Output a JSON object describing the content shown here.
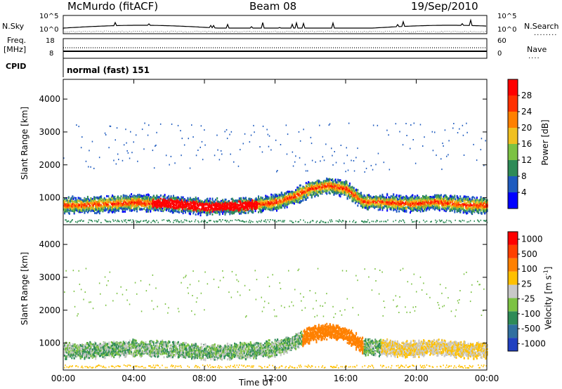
{
  "header": {
    "station": "McMurdo (fitACF)",
    "beam": "Beam 08",
    "date": "19/Sep/2010"
  },
  "noise_panel": {
    "left_label": "N.Sky",
    "right_label": "N.Search",
    "right_legend": "........",
    "tick_top": "10^5",
    "tick_bottom": "10^0"
  },
  "freq_panel": {
    "left_label_1": "Freq.",
    "left_label_2": "[MHz]",
    "left_tick_top": "18",
    "left_tick_bottom": "8",
    "right_label": "Nave",
    "right_legend": "....",
    "right_tick_top": "60",
    "right_tick_bottom": "0"
  },
  "cpid_panel": {
    "label": "CPID",
    "value": "normal (fast) 151"
  },
  "chart_data": [
    {
      "type": "heatmap",
      "title": "",
      "xlabel": "Time UT",
      "ylabel": "Slant Range [km]",
      "x_ticks": [
        "00:00",
        "04:00",
        "08:00",
        "12:00",
        "16:00",
        "20:00",
        "00:00"
      ],
      "y_ticks": [
        1000,
        2000,
        3000,
        4000
      ],
      "ylim": [
        180,
        4600
      ],
      "colorbar": {
        "label": "Power [dB]",
        "ticks": [
          "4",
          "8",
          "12",
          "16",
          "20",
          "24",
          "28"
        ],
        "colors": [
          "#0000ff",
          "#1e5bbf",
          "#2e8b57",
          "#7cc243",
          "#f0c020",
          "#ff8000",
          "#ff3000",
          "#ff0000"
        ]
      },
      "series": [
        {
          "x": [
            0,
            1,
            2,
            3,
            4,
            5,
            6,
            7,
            8,
            9,
            10,
            11,
            12,
            13,
            14,
            15,
            16,
            17,
            18,
            19,
            20,
            21,
            22,
            23,
            24
          ],
          "y": [
            800,
            800,
            820,
            850,
            880,
            860,
            850,
            800,
            750,
            760,
            780,
            820,
            880,
            1050,
            1300,
            1400,
            1300,
            900,
            900,
            850,
            850,
            900,
            850,
            800,
            800
          ]
        }
      ]
    },
    {
      "type": "heatmap",
      "title": "",
      "xlabel": "Time UT",
      "ylabel": "Slant Range [km]",
      "x_ticks": [
        "00:00",
        "04:00",
        "08:00",
        "12:00",
        "16:00",
        "20:00",
        "00:00"
      ],
      "y_ticks": [
        1000,
        2000,
        3000,
        4000
      ],
      "ylim": [
        180,
        4600
      ],
      "colorbar": {
        "label": "Velocity [m s^-1]",
        "ticks": [
          "1000",
          "500",
          "100",
          "25",
          "-25",
          "-100",
          "-500",
          "-1000"
        ],
        "colors": [
          "#2040c0",
          "#3070a0",
          "#2e8b57",
          "#7cc243",
          "#c8c8c8",
          "#ffc000",
          "#ff8000",
          "#ff4000",
          "#ff0000"
        ]
      },
      "series": [
        {
          "x": [
            0,
            1,
            2,
            3,
            4,
            5,
            6,
            7,
            8,
            9,
            10,
            11,
            12,
            13,
            14,
            15,
            16,
            17,
            18,
            19,
            20,
            21,
            22,
            23,
            24
          ],
          "y": [
            800,
            800,
            820,
            850,
            880,
            860,
            850,
            800,
            750,
            760,
            780,
            820,
            880,
            1050,
            1300,
            1400,
            1300,
            900,
            900,
            850,
            850,
            900,
            850,
            800,
            800
          ]
        }
      ]
    }
  ]
}
